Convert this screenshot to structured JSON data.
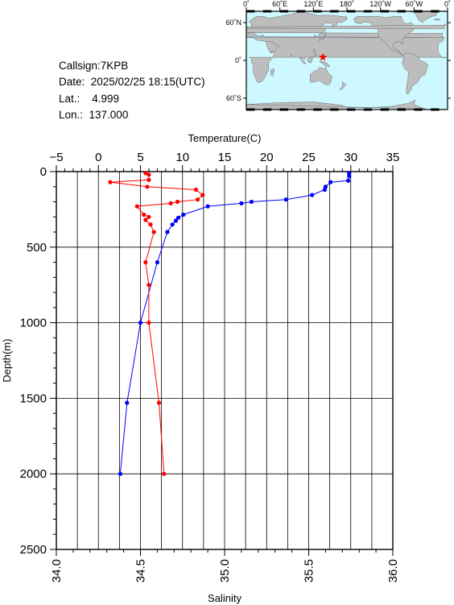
{
  "info": {
    "callsign": "Callsign:7KPB",
    "date": "Date:  2025/02/25 18:15(UTC)",
    "lat": "Lat.:    4.999",
    "lon": "Lon.:  137.000"
  },
  "map": {
    "lon_labels": [
      "0˚",
      "60˚E",
      "120˚E",
      "180˚",
      "120˚W",
      "60˚W",
      "0˚"
    ],
    "lat_labels": [
      "60˚N",
      "0˚",
      "60˚S"
    ],
    "marker_lon": 137.0,
    "marker_lat": 4.999,
    "ocean_color": "#cdf8ff",
    "land_color": "#bdbdbd",
    "marker_color": "#ff0000"
  },
  "chart_data": {
    "type": "line",
    "title": "",
    "temperature_axis": {
      "label": "Temperature(C)",
      "range": [
        -5,
        35
      ],
      "ticks": [
        "−5",
        "0",
        "5",
        "10",
        "15",
        "20",
        "25",
        "30",
        "35"
      ]
    },
    "salinity_axis": {
      "label": "Salinity",
      "range": [
        34.0,
        36.0
      ],
      "ticks": [
        "34.0",
        "34.5",
        "35.0",
        "35.5",
        "36.0"
      ]
    },
    "depth_axis": {
      "label": "Depth(m)",
      "range": [
        0,
        2500
      ],
      "inverted": true,
      "ticks": [
        "0",
        "500",
        "1000",
        "1500",
        "2000",
        "2500"
      ]
    },
    "grid": true,
    "series": [
      {
        "axis": "temperature",
        "color": "#0000ff",
        "points": [
          {
            "value": 29.8,
            "depth": 10
          },
          {
            "value": 29.8,
            "depth": 30
          },
          {
            "value": 29.7,
            "depth": 60
          },
          {
            "value": 27.6,
            "depth": 70
          },
          {
            "value": 27.0,
            "depth": 100
          },
          {
            "value": 26.9,
            "depth": 120
          },
          {
            "value": 25.4,
            "depth": 155
          },
          {
            "value": 22.3,
            "depth": 185
          },
          {
            "value": 18.2,
            "depth": 200
          },
          {
            "value": 17.0,
            "depth": 210
          },
          {
            "value": 13.0,
            "depth": 230
          },
          {
            "value": 10.1,
            "depth": 285
          },
          {
            "value": 9.5,
            "depth": 305
          },
          {
            "value": 9.2,
            "depth": 325
          },
          {
            "value": 8.8,
            "depth": 350
          },
          {
            "value": 8.2,
            "depth": 400
          },
          {
            "value": 7.0,
            "depth": 600
          },
          {
            "value": 5.0,
            "depth": 1000
          },
          {
            "value": 3.4,
            "depth": 1530
          },
          {
            "value": 2.6,
            "depth": 2000
          }
        ]
      },
      {
        "axis": "salinity",
        "color": "#ff0000",
        "points": [
          {
            "value": 34.53,
            "depth": 10
          },
          {
            "value": 34.55,
            "depth": 20
          },
          {
            "value": 34.55,
            "depth": 55
          },
          {
            "value": 34.32,
            "depth": 70
          },
          {
            "value": 34.54,
            "depth": 100
          },
          {
            "value": 34.83,
            "depth": 120
          },
          {
            "value": 34.87,
            "depth": 155
          },
          {
            "value": 34.84,
            "depth": 185
          },
          {
            "value": 34.72,
            "depth": 200
          },
          {
            "value": 34.68,
            "depth": 210
          },
          {
            "value": 34.48,
            "depth": 230
          },
          {
            "value": 34.52,
            "depth": 285
          },
          {
            "value": 34.55,
            "depth": 300
          },
          {
            "value": 34.53,
            "depth": 320
          },
          {
            "value": 34.56,
            "depth": 350
          },
          {
            "value": 34.58,
            "depth": 400
          },
          {
            "value": 34.53,
            "depth": 600
          },
          {
            "value": 34.55,
            "depth": 750
          },
          {
            "value": 34.55,
            "depth": 1000
          },
          {
            "value": 34.61,
            "depth": 1530
          },
          {
            "value": 34.64,
            "depth": 2000
          }
        ]
      }
    ]
  }
}
